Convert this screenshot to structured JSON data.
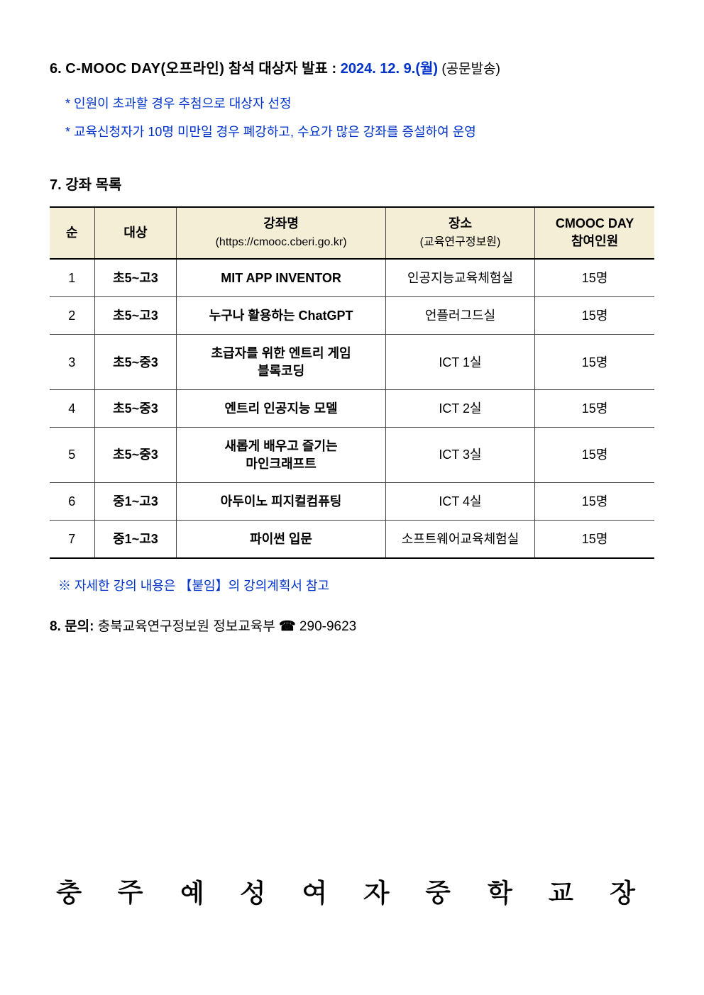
{
  "section6": {
    "number": "6.",
    "title_bold": "C-MOOC DAY(오프라인)",
    "body_bold": " 참석 대상자 발표 : ",
    "date": "2024. 12. 9.(월)",
    "note": " (공문발송)",
    "bullet1": "* 인원이 초과할 경우 추첨으로 대상자 선정",
    "bullet2": "* 교육신청자가 10명 미만일 경우 폐강하고, 수요가 많은 강좌를 증설하여 운영"
  },
  "section7": {
    "title": "7. 강좌 목록",
    "headers": {
      "c0": "순",
      "c1": "대상",
      "c2a": "강좌명",
      "c2b": "(https://cmooc.cberi.go.kr)",
      "c3a": "장소",
      "c3b": "(교육연구정보원)",
      "c4a": "CMOOC DAY",
      "c4b": "참여인원"
    },
    "rows": [
      {
        "n": "1",
        "target": "초5~고3",
        "name": "MIT APP INVENTOR",
        "place": "인공지능교육체험실",
        "cap": "15명"
      },
      {
        "n": "2",
        "target": "초5~고3",
        "name": "누구나 활용하는 ChatGPT",
        "place": "언플러그드실",
        "cap": "15명"
      },
      {
        "n": "3",
        "target": "초5~중3",
        "name": "초급자를 위한 엔트리 게임\n블록코딩",
        "place": "ICT 1실",
        "cap": "15명"
      },
      {
        "n": "4",
        "target": "초5~중3",
        "name": "엔트리 인공지능 모델",
        "place": "ICT 2실",
        "cap": "15명"
      },
      {
        "n": "5",
        "target": "초5~중3",
        "name": "새롭게 배우고 즐기는\n마인크래프트",
        "place": "ICT 3실",
        "cap": "15명"
      },
      {
        "n": "6",
        "target": "중1~고3",
        "name": "아두이노 피지컬컴퓨팅",
        "place": "ICT 4실",
        "cap": "15명"
      },
      {
        "n": "7",
        "target": "중1~고3",
        "name": "파이썬 입문",
        "place": "소프트웨어교육체험실",
        "cap": "15명"
      }
    ],
    "attach_note": "※ 자세한 강의 내용은 【붙임】의 강의계획서 참고"
  },
  "section8": {
    "label": "8. 문의:",
    "dept": " 충북교육연구정보원 정보교육부 ",
    "phone_icon": "☎",
    "phone": " 290-9623"
  },
  "footer": "충 주 예 성 여 자 중 학 교 장",
  "style": {
    "accent_blue": "#0033cc",
    "header_bg": "#f5eed6",
    "text_color": "#000000",
    "page_bg": "#ffffff"
  }
}
